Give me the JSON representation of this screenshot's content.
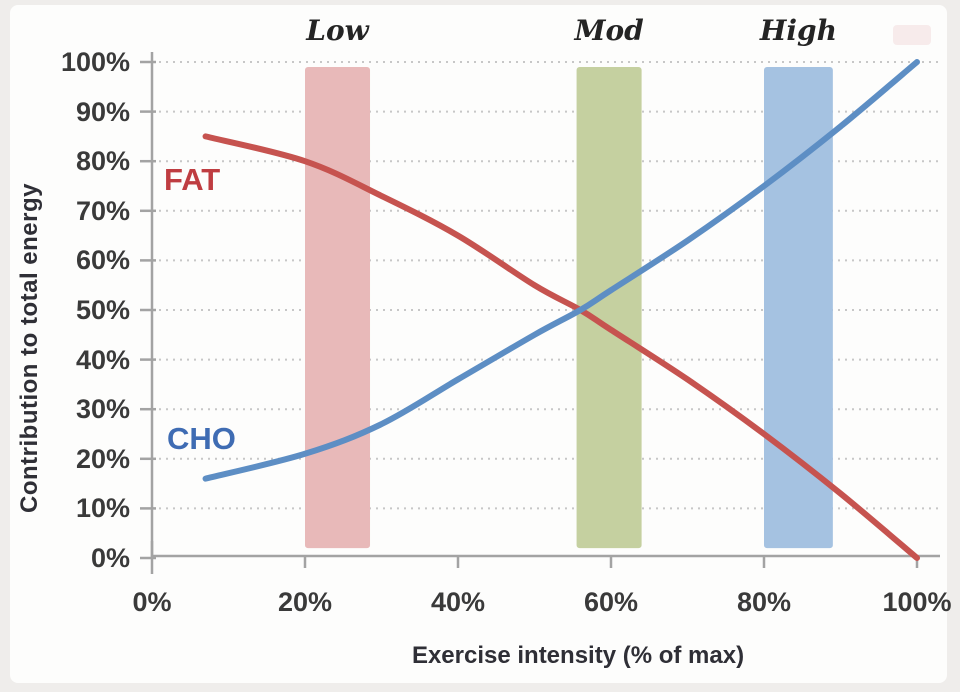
{
  "chart_data": {
    "type": "line",
    "title": "",
    "xlabel": "Exercise intensity (% of max)",
    "ylabel": "Contribution to total energy",
    "xlim": [
      0,
      100
    ],
    "ylim": [
      0,
      100
    ],
    "x_ticks": [
      {
        "label": "0%",
        "value": 0
      },
      {
        "label": "20%",
        "value": 20
      },
      {
        "label": "40%",
        "value": 40
      },
      {
        "label": "60%",
        "value": 60
      },
      {
        "label": "80%",
        "value": 80
      },
      {
        "label": "100%",
        "value": 100
      }
    ],
    "y_ticks": [
      {
        "label": "0%",
        "value": 0
      },
      {
        "label": "10%",
        "value": 10
      },
      {
        "label": "20%",
        "value": 20
      },
      {
        "label": "30%",
        "value": 30
      },
      {
        "label": "40%",
        "value": 40
      },
      {
        "label": "50%",
        "value": 50
      },
      {
        "label": "60%",
        "value": 60
      },
      {
        "label": "70%",
        "value": 70
      },
      {
        "label": "80%",
        "value": 80
      },
      {
        "label": "90%",
        "value": 90
      },
      {
        "label": "100%",
        "value": 100
      }
    ],
    "grid": "horizontal dotted",
    "legend_position": "inline curve labels",
    "series": [
      {
        "name": "FAT",
        "color": "#c6534f",
        "label_color": "#bf3d41",
        "x": [
          7,
          20,
          30,
          40,
          50,
          56,
          60,
          70,
          80,
          90,
          100
        ],
        "values": [
          85,
          80,
          73,
          65,
          55,
          50,
          46,
          36,
          25,
          13,
          0
        ]
      },
      {
        "name": "CHO",
        "color": "#5d8ec4",
        "label_color": "#3f6cb3",
        "x": [
          7,
          20,
          30,
          40,
          50,
          56,
          60,
          70,
          80,
          90,
          100
        ],
        "values": [
          16,
          21,
          27,
          36,
          45,
          50,
          54,
          64,
          75,
          87,
          100
        ]
      }
    ],
    "crossover_point": {
      "x": 56,
      "y": 50
    },
    "bands": [
      {
        "label": "Low",
        "x_range": [
          20,
          28.5
        ],
        "y_range": [
          2,
          99
        ],
        "color": "#e8b9b9"
      },
      {
        "label": "Mod",
        "x_range": [
          55.5,
          64
        ],
        "y_range": [
          2,
          99
        ],
        "color": "#c5d0a0"
      },
      {
        "label": "High",
        "x_range": [
          80,
          89
        ],
        "y_range": [
          2,
          99
        ],
        "color": "#a5c2e1"
      }
    ],
    "colors": {
      "panel_background": "#fdfdfc",
      "page_background": "#efedeb",
      "gridline": "#c7c7c7",
      "axis_line": "#a3a3a3",
      "tick_label": "#3a3a3a",
      "axis_title": "#2f2f36"
    }
  }
}
